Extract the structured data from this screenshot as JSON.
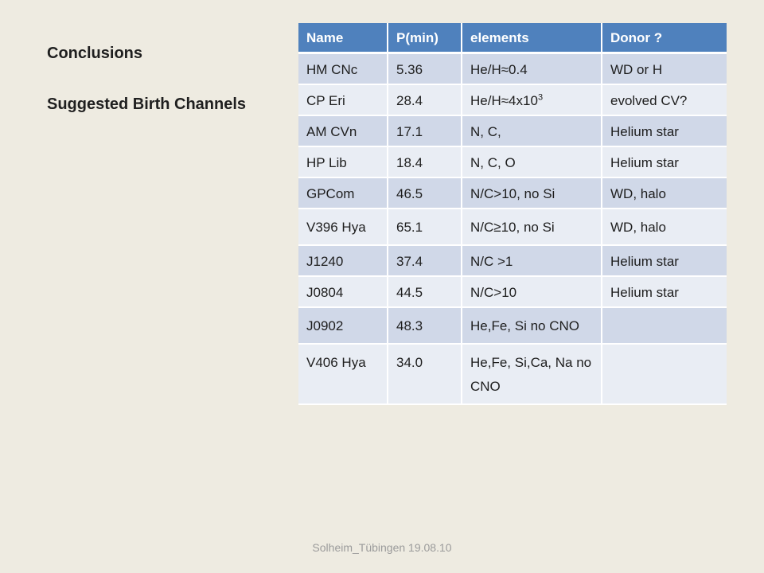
{
  "slide": {
    "title": "Conclusions",
    "subtitle": "Suggested Birth Channels",
    "footer": "Solheim_Tübingen 19.08.10"
  },
  "table": {
    "headers": [
      "Name",
      "P(min)",
      "elements",
      "Donor ?"
    ],
    "rows": [
      {
        "name": "HM CNc",
        "period": "5.36",
        "elements": "He/H≈0.4",
        "elements_sup": "",
        "donor": "WD  or H"
      },
      {
        "name": "CP Eri",
        "period": "28.4",
        "elements": "He/H≈4x10",
        "elements_sup": "3",
        "donor": "evolved CV?"
      },
      {
        "name": "AM CVn",
        "period": "17.1",
        "elements": "N, C,",
        "elements_sup": "",
        "donor": "Helium star"
      },
      {
        "name": "HP Lib",
        "period": "18.4",
        "elements": "N, C, O",
        "elements_sup": "",
        "donor": "Helium star"
      },
      {
        "name": "GPCom",
        "period": "46.5",
        "elements": "N/C>10, no Si",
        "elements_sup": "",
        "donor": "WD, halo"
      },
      {
        "name": "V396 Hya",
        "period": "65.1",
        "elements": "N/C≥10, no Si",
        "elements_sup": "",
        "donor": "WD, halo"
      },
      {
        "name": "J1240",
        "period": "37.4",
        "elements": "N/C >1",
        "elements_sup": "",
        "donor": "Helium star"
      },
      {
        "name": "J0804",
        "period": "44.5",
        "elements": "N/C>10",
        "elements_sup": "",
        "donor": "Helium star"
      },
      {
        "name": "J0902",
        "period": "48.3",
        "elements": "He,Fe, Si no CNO",
        "elements_sup": "",
        "donor": ""
      },
      {
        "name": "V406 Hya",
        "period": "34.0",
        "elements": "He,Fe, Si,Ca, Na no CNO",
        "elements_sup": "",
        "donor": ""
      }
    ]
  },
  "colors": {
    "background": "#eeebe1",
    "header_fill": "#4f81bd",
    "row_odd_fill": "#d0d8e8",
    "row_even_fill": "#e9edf4"
  }
}
